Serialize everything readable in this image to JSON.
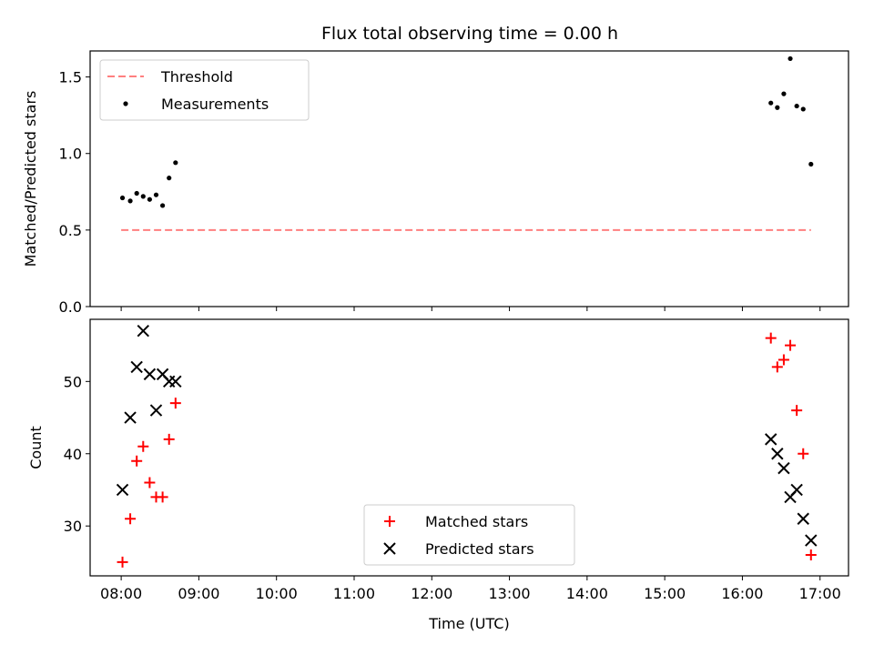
{
  "chart_data": [
    {
      "type": "scatter",
      "title": "Flux total observing time = 0.00 h",
      "xlabel": "",
      "ylabel": "Matched/Predicted stars",
      "xlim": [
        "07:36",
        "17:22"
      ],
      "ylim": [
        0.0,
        1.67
      ],
      "y_ticks": [
        0.0,
        0.5,
        1.0,
        1.5
      ],
      "x_ticks": [
        "08:00",
        "09:00",
        "10:00",
        "11:00",
        "12:00",
        "13:00",
        "14:00",
        "15:00",
        "16:00",
        "17:00"
      ],
      "show_x_tick_labels": false,
      "grid": false,
      "legend": {
        "location": "upper-left",
        "entries": [
          {
            "label": "Threshold",
            "marker": "dashed-line",
            "color": "#ff7f7f"
          },
          {
            "label": "Measurements",
            "marker": "dot",
            "color": "#000000"
          }
        ]
      },
      "series": [
        {
          "name": "Threshold",
          "style": "dashed-line",
          "color": "#ff7f7f",
          "x": [
            "08:00",
            "16:53"
          ],
          "y": [
            0.5,
            0.5
          ]
        },
        {
          "name": "Measurements",
          "style": "dot",
          "color": "#000000",
          "x": [
            "08:01",
            "08:07",
            "08:12",
            "08:17",
            "08:22",
            "08:27",
            "08:32",
            "08:37",
            "08:42",
            "16:22",
            "16:27",
            "16:32",
            "16:37",
            "16:42",
            "16:47",
            "16:53"
          ],
          "y": [
            0.71,
            0.69,
            0.74,
            0.72,
            0.7,
            0.73,
            0.66,
            0.84,
            0.94,
            1.33,
            1.3,
            1.39,
            1.62,
            1.31,
            1.29,
            0.93
          ]
        }
      ]
    },
    {
      "type": "scatter",
      "title": "",
      "xlabel": "Time (UTC)",
      "ylabel": "Count",
      "xlim": [
        "07:36",
        "17:22"
      ],
      "ylim": [
        23.1,
        58.6
      ],
      "y_ticks": [
        30,
        40,
        50
      ],
      "x_ticks": [
        "08:00",
        "09:00",
        "10:00",
        "11:00",
        "12:00",
        "13:00",
        "14:00",
        "15:00",
        "16:00",
        "17:00"
      ],
      "show_x_tick_labels": true,
      "grid": false,
      "legend": {
        "location": "lower-center",
        "entries": [
          {
            "label": "Matched stars",
            "marker": "plus",
            "color": "#ff0000"
          },
          {
            "label": "Predicted stars",
            "marker": "x",
            "color": "#000000"
          }
        ]
      },
      "series": [
        {
          "name": "Matched stars",
          "style": "plus",
          "color": "#ff0000",
          "x": [
            "08:01",
            "08:07",
            "08:12",
            "08:17",
            "08:22",
            "08:27",
            "08:32",
            "08:37",
            "08:42",
            "16:22",
            "16:27",
            "16:32",
            "16:37",
            "16:42",
            "16:47",
            "16:53"
          ],
          "y": [
            25,
            31,
            39,
            41,
            36,
            34,
            34,
            42,
            47,
            56,
            52,
            53,
            55,
            46,
            40,
            26
          ]
        },
        {
          "name": "Predicted stars",
          "style": "x",
          "color": "#000000",
          "x": [
            "08:01",
            "08:07",
            "08:12",
            "08:17",
            "08:22",
            "08:27",
            "08:32",
            "08:37",
            "08:42",
            "16:22",
            "16:27",
            "16:32",
            "16:37",
            "16:42",
            "16:47",
            "16:53"
          ],
          "y": [
            35,
            45,
            52,
            57,
            51,
            46,
            51,
            50,
            50,
            42,
            40,
            38,
            34,
            35,
            31,
            28
          ]
        }
      ]
    }
  ]
}
